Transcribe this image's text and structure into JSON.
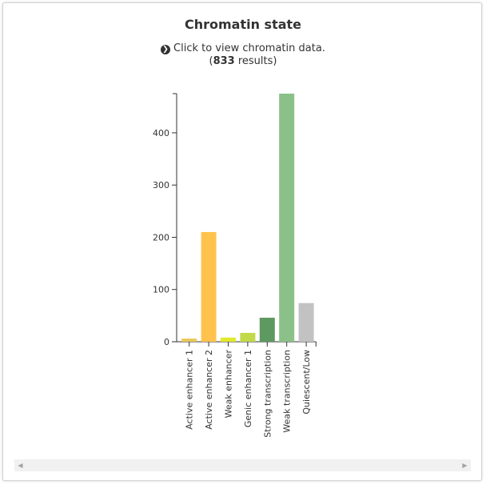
{
  "header": {
    "title": "Chromatin state",
    "link_icon": "circle-arrow-right-icon",
    "link_text": "Click to view chromatin data.",
    "results_open": "(",
    "results_count": "833",
    "results_close": " results)"
  },
  "chart_data": {
    "type": "bar",
    "categories": [
      "Active enhancer 1",
      "Active enhancer 2",
      "Weak enhancer",
      "Genic enhancer 1",
      "Strong transcription",
      "Weak transcription",
      "Quiescent/Low"
    ],
    "values": [
      6,
      210,
      8,
      17,
      46,
      475,
      74
    ],
    "colors": [
      "#e8c75a",
      "#ffc34d",
      "#e2e82c",
      "#c2d94a",
      "#5d9960",
      "#8bc188",
      "#c2c2c2"
    ],
    "ylim": [
      0,
      475
    ],
    "yticks": [
      0,
      100,
      200,
      300,
      400
    ],
    "grid": false
  },
  "scrollbar": {
    "left_icon": "scroll-left-icon",
    "right_icon": "scroll-right-icon"
  }
}
